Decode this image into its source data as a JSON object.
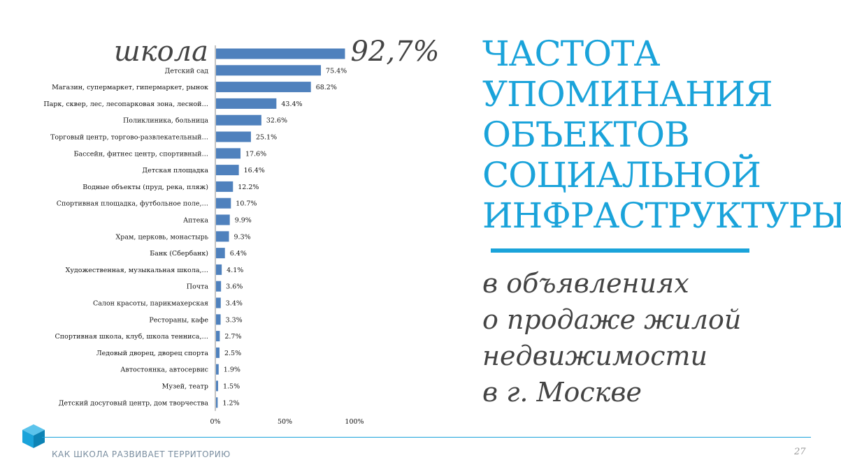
{
  "chart_data": {
    "type": "bar",
    "orientation": "horizontal",
    "categories": [
      "школа",
      "Детский сад",
      "Магазин, супермаркет, гипермаркет, рынок",
      "Парк, сквер, лес, лесопарковая зона, лесной…",
      "Поликлиника, больница",
      "Торговый центр, торгово-развлекательный…",
      "Бассейн, фитнес центр, спортивный…",
      "Детская площадка",
      "Водные объекты (пруд, река, пляж)",
      "Спортивная площадка, футбольное поле,…",
      "Аптека",
      "Храм, церковь, монастырь",
      "Банк (Сбербанк)",
      "Художественная, музыкальная школа,…",
      "Почта",
      "Салон красоты, парикмахерская",
      "Рестораны, кафе",
      "Спортивная школа, клуб, школа тенниса,…",
      "Ледовый дворец, дворец спорта",
      "Автостоянка, автосервис",
      "Музей, театр",
      "Детский досуговый центр, дом творчества"
    ],
    "values": [
      92.7,
      75.4,
      68.2,
      43.4,
      32.6,
      25.1,
      17.6,
      16.4,
      12.2,
      10.7,
      9.9,
      9.3,
      6.4,
      4.1,
      3.6,
      3.4,
      3.3,
      2.7,
      2.5,
      1.9,
      1.5,
      1.2
    ],
    "value_labels": [
      "92,7%",
      "75.4%",
      "68.2%",
      "43.4%",
      "32.6%",
      "25.1%",
      "17.6%",
      "16.4%",
      "12.2%",
      "10.7%",
      "9.9%",
      "9.3%",
      "6.4%",
      "4.1%",
      "3.6%",
      "3.4%",
      "3.3%",
      "2.7%",
      "2.5%",
      "1.9%",
      "1.5%",
      "1.2%"
    ],
    "x_ticks": [
      "0%",
      "50%",
      "100%"
    ],
    "xlim": [
      0,
      100
    ],
    "bar_color": "#4f81bd",
    "grid": false
  },
  "title_lines": [
    "ЧАСТОТА",
    "УПОМИНАНИЯ",
    "ОБЪЕКТОВ",
    "СОЦИАЛЬНОЙ",
    "ИНФРАСТРУКТУРЫ"
  ],
  "subtitle_lines": [
    "в объявлениях",
    "о продаже жилой",
    "недвижимости",
    "в г. Москве"
  ],
  "footer": {
    "text": "КАК ШКОЛА РАЗВИВАЕТ ТЕРРИТОРИЮ",
    "page": "27"
  },
  "colors": {
    "accent": "#1aa3da",
    "text_dark": "#444444"
  }
}
